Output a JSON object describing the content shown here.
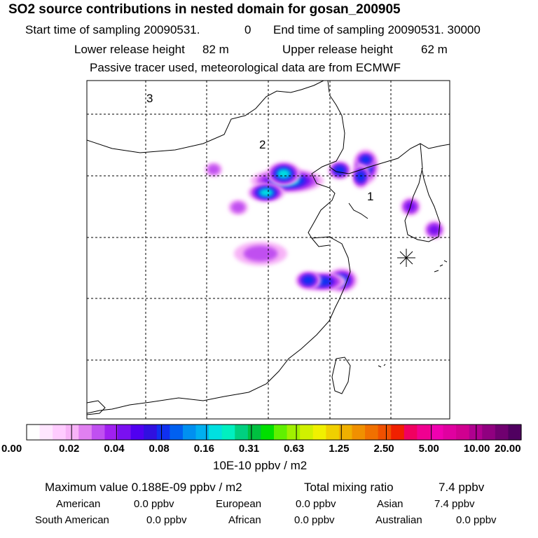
{
  "header": {
    "title": "SO2 source contributions in nested domain for gosan_200905",
    "start_label": "Start time of sampling 20090531.",
    "start_hour": "0",
    "end_label": "End time of sampling 20090531. 30000",
    "lower_label": "Lower release height",
    "lower_value": "82 m",
    "upper_label": "Upper release height",
    "upper_value": "62 m",
    "note": "Passive tracer used, meteorological data are from ECMWF"
  },
  "chart_data": {
    "type": "heatmap",
    "title": "SO2 source contributions in nested domain for gosan_200905",
    "region_labels": [
      "1",
      "2",
      "3"
    ],
    "receptor_marker": "star",
    "colorbar": {
      "ticks": [
        "0.00",
        "0.02",
        "0.04",
        "0.08",
        "0.16",
        "0.31",
        "0.63",
        "1.25",
        "2.50",
        "5.00",
        "10.00",
        "20.00"
      ],
      "units": "10E-10 ppbv / m2",
      "colors": [
        "#ffffff",
        "#ffe6ff",
        "#ffccff",
        "#f7b3f7",
        "#e080f0",
        "#c050f0",
        "#a020f0",
        "#7a10f0",
        "#5000f0",
        "#3010e0",
        "#1030f0",
        "#0060f0",
        "#0090f0",
        "#00b0f0",
        "#00e0e0",
        "#00f0c0",
        "#00d080",
        "#00c040",
        "#00e000",
        "#60f000",
        "#a0f000",
        "#d0f000",
        "#f0f000",
        "#f0d000",
        "#f0b000",
        "#f09000",
        "#f07000",
        "#f05000",
        "#f02000",
        "#f00060",
        "#f00090",
        "#f000b0",
        "#e000a0",
        "#d00090",
        "#b00090",
        "#900080",
        "#700070",
        "#500060"
      ],
      "grid_ticks": [
        0.0,
        0.02,
        0.04,
        0.08,
        0.16,
        0.31,
        0.63,
        1.25,
        2.5,
        5.0,
        10.0,
        20.0
      ]
    },
    "hotspots": [
      {
        "id": "beijing-tianjin",
        "level": 0.9
      },
      {
        "id": "shandong-north",
        "level": 0.6
      },
      {
        "id": "liaoning",
        "level": 0.7
      },
      {
        "id": "korea-west",
        "level": 0.5
      },
      {
        "id": "shanghai-yangtze",
        "level": 0.6
      },
      {
        "id": "henan-anhui",
        "level": 0.4
      }
    ]
  },
  "summary": {
    "max_label": "Maximum value  0.188E-09 ppbv / m2",
    "total_label": "Total mixing ratio",
    "total_value": "7.4 ppbv",
    "contributions": [
      {
        "name": "American",
        "value": "0.0 ppbv"
      },
      {
        "name": "European",
        "value": "0.0 ppbv"
      },
      {
        "name": "Asian",
        "value": "7.4 ppbv"
      },
      {
        "name": "South American",
        "value": "0.0 ppbv"
      },
      {
        "name": "African",
        "value": "0.0 ppbv"
      },
      {
        "name": "Australian",
        "value": "0.0 ppbv"
      }
    ]
  }
}
